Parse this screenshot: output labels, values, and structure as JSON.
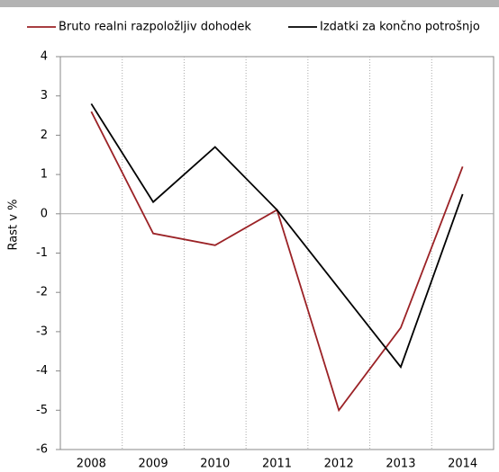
{
  "chart_data": {
    "type": "line",
    "y_label": "Rast v %",
    "categories": [
      "2008",
      "2009",
      "2010",
      "2011",
      "2012",
      "2013",
      "2014"
    ],
    "series": [
      {
        "name": "Bruto realni razpoložljiv dohodek",
        "color": "#9b2226",
        "values": [
          2.6,
          -0.5,
          -0.8,
          0.1,
          -5.0,
          -2.9,
          1.2
        ]
      },
      {
        "name": "Izdatki za končno potrošnjo",
        "color": "#000000",
        "values": [
          2.8,
          0.3,
          1.7,
          0.1,
          -1.9,
          -3.9,
          0.5
        ]
      }
    ],
    "ylim": [
      -6,
      4
    ],
    "yticks": [
      -6,
      -5,
      -4,
      -3,
      -2,
      -1,
      0,
      1,
      2,
      3,
      4
    ],
    "grid": true
  }
}
